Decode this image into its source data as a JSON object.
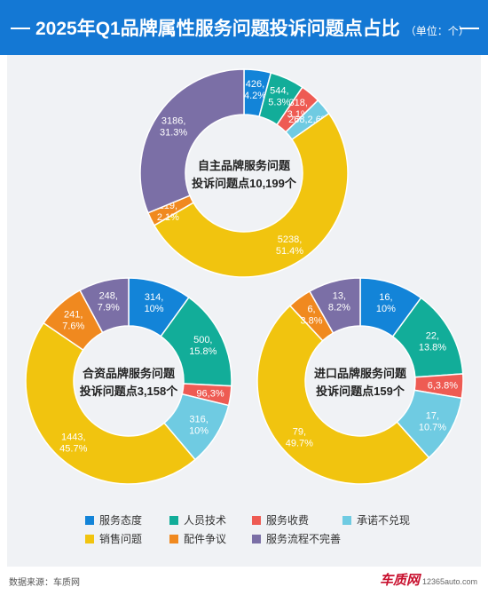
{
  "header": {
    "title": "2025年Q1品牌属性服务问题投诉问题点占比",
    "unit": "（单位：个）"
  },
  "colors": {
    "服务态度": "#1384d8",
    "人员技术": "#12ad99",
    "服务收费": "#ee5b53",
    "承诺不兑现": "#6fcbe2",
    "销售问题": "#f1c40f",
    "配件争议": "#f0891f",
    "服务流程不完善": "#7b6fa6"
  },
  "legend": [
    {
      "name": "服务态度"
    },
    {
      "name": "人员技术"
    },
    {
      "name": "服务收费"
    },
    {
      "name": "承诺不兑现"
    },
    {
      "name": "销售问题"
    },
    {
      "name": "配件争议"
    },
    {
      "name": "服务流程不完善"
    }
  ],
  "chart_data": [
    {
      "type": "pie",
      "center_label": [
        "自主品牌服务问题",
        "投诉问题点10,199个"
      ],
      "slices": [
        {
          "name": "服务态度",
          "value": 426,
          "label": [
            "426,",
            "4.2%"
          ]
        },
        {
          "name": "人员技术",
          "value": 544,
          "label": [
            "544,",
            "5.3%"
          ]
        },
        {
          "name": "服务收费",
          "value": 318,
          "label": [
            "318,",
            "3.1%"
          ]
        },
        {
          "name": "承诺不兑现",
          "value": 268,
          "label": [
            "268,2.6%"
          ]
        },
        {
          "name": "销售问题",
          "value": 5238,
          "label": [
            "5238,",
            "51.4%"
          ]
        },
        {
          "name": "配件争议",
          "value": 219,
          "label": [
            "219,",
            "2.1%"
          ]
        },
        {
          "name": "服务流程不完善",
          "value": 3186,
          "label": [
            "3186,",
            "31.3%"
          ]
        }
      ]
    },
    {
      "type": "pie",
      "center_label": [
        "合资品牌服务问题",
        "投诉问题点3,158个"
      ],
      "slices": [
        {
          "name": "服务态度",
          "value": 314,
          "label": [
            "314,",
            "10%"
          ]
        },
        {
          "name": "人员技术",
          "value": 500,
          "label": [
            "500,",
            "15.8%"
          ]
        },
        {
          "name": "服务收费",
          "value": 96,
          "label": [
            "96,3%"
          ]
        },
        {
          "name": "承诺不兑现",
          "value": 316,
          "label": [
            "316,",
            "10%"
          ]
        },
        {
          "name": "销售问题",
          "value": 1443,
          "label": [
            "1443,",
            "45.7%"
          ]
        },
        {
          "name": "配件争议",
          "value": 241,
          "label": [
            "241,",
            "7.6%"
          ]
        },
        {
          "name": "服务流程不完善",
          "value": 248,
          "label": [
            "248,",
            "7.9%"
          ]
        }
      ]
    },
    {
      "type": "pie",
      "center_label": [
        "进口品牌服务问题",
        "投诉问题点159个"
      ],
      "slices": [
        {
          "name": "服务态度",
          "value": 16,
          "label": [
            "16,",
            "10%"
          ]
        },
        {
          "name": "人员技术",
          "value": 22,
          "label": [
            "22,",
            "13.8%"
          ]
        },
        {
          "name": "服务收费",
          "value": 6,
          "label": [
            "6,3.8%"
          ]
        },
        {
          "name": "承诺不兑现",
          "value": 17,
          "label": [
            "17,",
            "10.7%"
          ]
        },
        {
          "name": "销售问题",
          "value": 79,
          "label": [
            "79,",
            "49.7%"
          ]
        },
        {
          "name": "配件争议",
          "value": 6,
          "label": [
            "6,",
            "3.8%"
          ]
        },
        {
          "name": "服务流程不完善",
          "value": 13,
          "label": [
            "13,",
            "8.2%"
          ]
        }
      ]
    }
  ],
  "footer": {
    "source": "数据来源：车质网",
    "logo": "车质网",
    "site": "12365auto.com"
  }
}
